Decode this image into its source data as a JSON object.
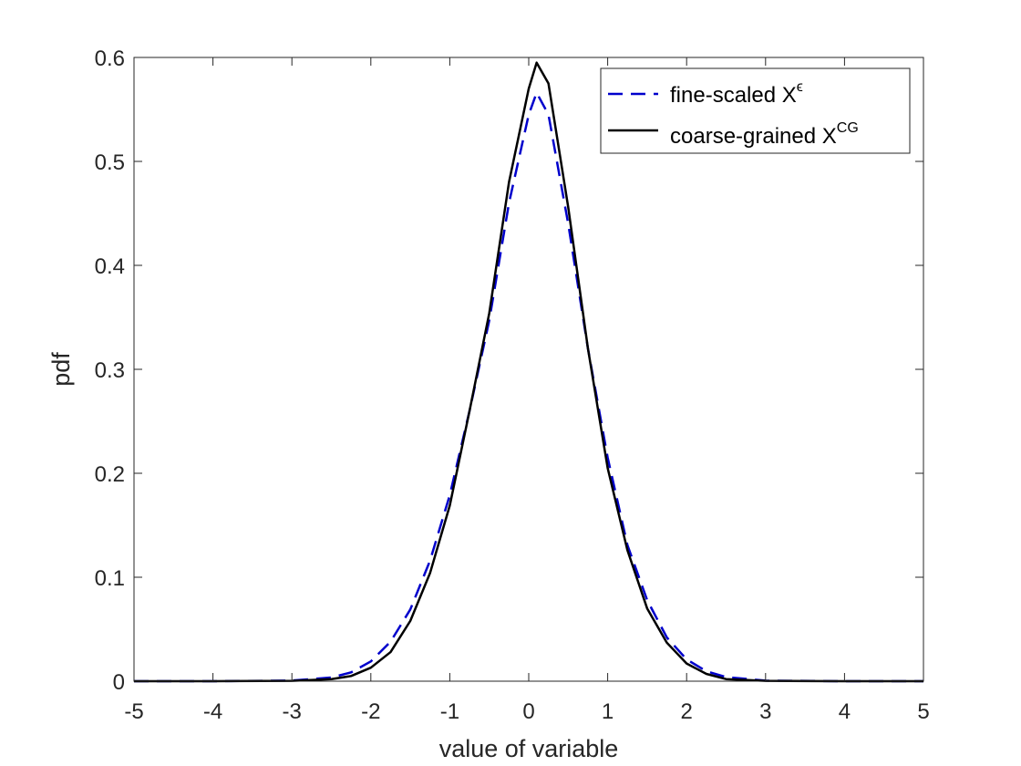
{
  "chart_data": {
    "type": "line",
    "title": "",
    "xlabel": "value of variable",
    "ylabel": "pdf",
    "xlim": [
      -5,
      5
    ],
    "ylim": [
      0,
      0.6
    ],
    "xticks": [
      -5,
      -4,
      -3,
      -2,
      -1,
      0,
      1,
      2,
      3,
      4,
      5
    ],
    "xtick_labels": [
      "-5",
      "-4",
      "-3",
      "-2",
      "-1",
      "0",
      "1",
      "2",
      "3",
      "4",
      "5"
    ],
    "yticks": [
      0,
      0.1,
      0.2,
      0.3,
      0.4,
      0.5,
      0.6
    ],
    "ytick_labels": [
      "0",
      "0.1",
      "0.2",
      "0.3",
      "0.4",
      "0.5",
      "0.6"
    ],
    "grid": false,
    "legend_position": "top-right",
    "series": [
      {
        "name": "fine-scaled X",
        "name_superscript": "ϵ",
        "color": "#0000cc",
        "dash": "dashed",
        "x": [
          -5,
          -4,
          -3,
          -2.5,
          -2.25,
          -2,
          -1.75,
          -1.5,
          -1.25,
          -1,
          -0.75,
          -0.5,
          -0.25,
          0,
          0.1,
          0.25,
          0.5,
          0.75,
          1,
          1.25,
          1.5,
          1.75,
          2,
          2.25,
          2.5,
          3,
          4,
          5
        ],
        "y": [
          0,
          0,
          0.0006,
          0.0035,
          0.0085,
          0.019,
          0.038,
          0.069,
          0.116,
          0.179,
          0.26,
          0.347,
          0.46,
          0.545,
          0.566,
          0.545,
          0.44,
          0.32,
          0.215,
          0.131,
          0.078,
          0.042,
          0.021,
          0.0095,
          0.004,
          0.0005,
          0,
          0
        ]
      },
      {
        "name": "coarse-grained X",
        "name_superscript": "CG",
        "color": "#000000",
        "dash": "solid",
        "x": [
          -5,
          -4,
          -3,
          -2.5,
          -2.25,
          -2,
          -1.75,
          -1.5,
          -1.25,
          -1,
          -0.75,
          -0.5,
          -0.25,
          0,
          0.1,
          0.25,
          0.5,
          0.75,
          1,
          1.25,
          1.5,
          1.75,
          2,
          2.25,
          2.5,
          3,
          4,
          5
        ],
        "y": [
          0,
          0,
          0.0003,
          0.002,
          0.005,
          0.013,
          0.028,
          0.058,
          0.104,
          0.169,
          0.26,
          0.354,
          0.48,
          0.57,
          0.595,
          0.575,
          0.456,
          0.32,
          0.205,
          0.126,
          0.07,
          0.037,
          0.017,
          0.007,
          0.002,
          0.0003,
          0,
          0
        ]
      }
    ]
  }
}
